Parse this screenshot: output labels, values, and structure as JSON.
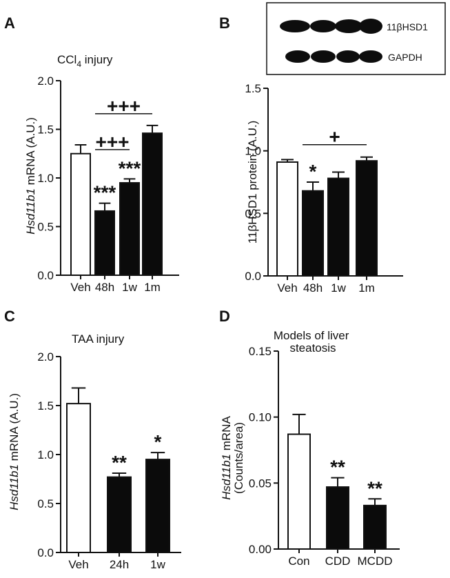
{
  "panels": [
    {
      "letter": "A",
      "title": "CCl4 injury",
      "ylabel": "Hsd11b1 mRNA (A.U.)",
      "chart_data": {
        "type": "bar",
        "categories": [
          "Veh",
          "48h",
          "1w",
          "1m"
        ],
        "values": [
          1.25,
          0.66,
          0.95,
          1.46
        ],
        "errors": [
          0.09,
          0.08,
          0.04,
          0.08
        ],
        "fills": [
          "white",
          "black",
          "black",
          "black"
        ],
        "annotations": [
          "",
          "***",
          "***",
          ""
        ],
        "comparisons": [
          {
            "from": 1,
            "to": 2,
            "label": "+++"
          },
          {
            "from": 1,
            "to": 3,
            "label": "+++"
          }
        ],
        "yticks": [
          "0.0",
          "0.5",
          "1.0",
          "1.5",
          "2.0"
        ],
        "ylim": [
          0,
          2.0
        ]
      }
    },
    {
      "letter": "B",
      "ylabel": "11βHSD1 protein (A.U.)",
      "chart_data": {
        "type": "bar",
        "categories": [
          "Veh",
          "48h",
          "1w",
          "1m"
        ],
        "values": [
          0.91,
          0.68,
          0.78,
          0.92
        ],
        "errors": [
          0.02,
          0.07,
          0.05,
          0.03
        ],
        "fills": [
          "white",
          "black",
          "black",
          "black"
        ],
        "annotations": [
          "",
          "*",
          "",
          ""
        ],
        "comparisons": [
          {
            "from": 1,
            "to": 3,
            "label": "+"
          }
        ],
        "yticks": [
          "0.0",
          "0.5",
          "1.0",
          "1.5"
        ],
        "ylim": [
          0,
          1.5
        ]
      },
      "blot": {
        "bands": [
          "11βHSD1",
          "GAPDH"
        ]
      }
    },
    {
      "letter": "C",
      "title": "TAA injury",
      "ylabel": "Hsd11b1 mRNA (A.U.)",
      "chart_data": {
        "type": "bar",
        "categories": [
          "Veh",
          "24h",
          "1w"
        ],
        "values": [
          1.52,
          0.77,
          0.95
        ],
        "errors": [
          0.16,
          0.04,
          0.07
        ],
        "fills": [
          "white",
          "black",
          "black"
        ],
        "annotations": [
          "",
          "**",
          "*"
        ],
        "comparisons": [],
        "yticks": [
          "0.0",
          "0.5",
          "1.0",
          "1.5",
          "2.0"
        ],
        "ylim": [
          0,
          2.0
        ]
      }
    },
    {
      "letter": "D",
      "title": "Models of liver steatosis",
      "ylabel": "Hsd11b1 mRNA (Counts/area)",
      "chart_data": {
        "type": "bar",
        "categories": [
          "Con",
          "CDD",
          "MCDD"
        ],
        "values": [
          0.087,
          0.047,
          0.033
        ],
        "errors": [
          0.015,
          0.007,
          0.005
        ],
        "fills": [
          "white",
          "black",
          "black"
        ],
        "annotations": [
          "",
          "**",
          "**"
        ],
        "comparisons": [],
        "yticks": [
          "0.00",
          "0.05",
          "0.10",
          "0.15"
        ],
        "ylim": [
          0,
          0.15
        ]
      }
    }
  ]
}
